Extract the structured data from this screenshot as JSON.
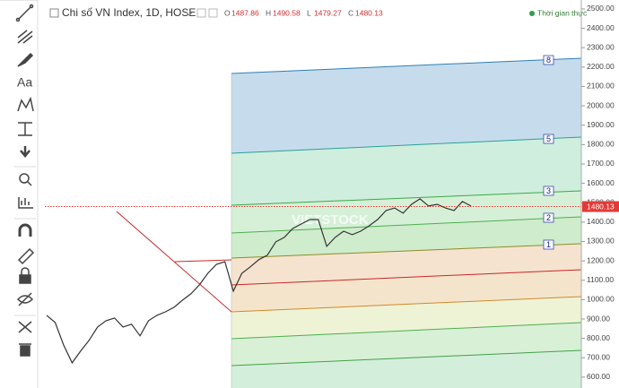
{
  "chart_data": {
    "type": "line",
    "title": "Chi số VN Index, 1D, HOSE",
    "ohlc": [
      {
        "label": "O",
        "value": 1487.86
      },
      {
        "label": "H",
        "value": 1490.58
      },
      {
        "label": "L",
        "value": 1479.27
      },
      {
        "label": "C",
        "value": 1480.13
      }
    ],
    "status": "Thời gian thực",
    "watermark": "VIETSTOCK",
    "color": "#333333",
    "last_price": 1480.13,
    "last_price_color": "#e53935",
    "values": [
      919,
      882,
      766,
      674,
      734,
      790,
      859,
      891,
      905,
      859,
      873,
      813,
      891,
      919,
      937,
      960,
      997,
      1030,
      1076,
      1136,
      1182,
      1196,
      1044,
      1136,
      1169,
      1206,
      1229,
      1298,
      1321,
      1367,
      1390,
      1413,
      1413,
      1275,
      1321,
      1353,
      1335,
      1353,
      1381,
      1413,
      1460,
      1473,
      1446,
      1492,
      1520,
      1483,
      1492,
      1473,
      1460,
      1506,
      1483
    ],
    "ylim": [
      544,
      2546
    ],
    "yticks": [
      {
        "value": 600,
        "label": "600.00"
      },
      {
        "value": 700,
        "label": "700.00"
      },
      {
        "value": 800,
        "label": "800.00"
      },
      {
        "value": 900,
        "label": "900.00"
      },
      {
        "value": 1000,
        "label": "1000.00"
      },
      {
        "value": 1100,
        "label": "1100.00"
      },
      {
        "value": 1200,
        "label": "1200.00"
      },
      {
        "value": 1300,
        "label": "1300.00"
      },
      {
        "value": 1400,
        "label": "1400.00"
      },
      {
        "value": 1500,
        "label": "1500.00"
      },
      {
        "value": 1600,
        "label": "1600.00"
      },
      {
        "value": 1700,
        "label": "1700.00"
      },
      {
        "value": 1800,
        "label": "1800.00"
      },
      {
        "value": 1900,
        "label": "1900.00"
      },
      {
        "value": 2000,
        "label": "2000.00"
      },
      {
        "value": 2100,
        "label": "2100.00"
      },
      {
        "value": 2200,
        "label": "2200.00"
      },
      {
        "value": 2300,
        "label": "2300.00"
      },
      {
        "value": 2400,
        "label": "2400.00"
      },
      {
        "value": 2500,
        "label": "2500.00"
      }
    ],
    "channel_labels": [
      "8",
      "5",
      "3",
      "2",
      "1"
    ]
  },
  "toolbar": {
    "text_tool": "Aa"
  }
}
